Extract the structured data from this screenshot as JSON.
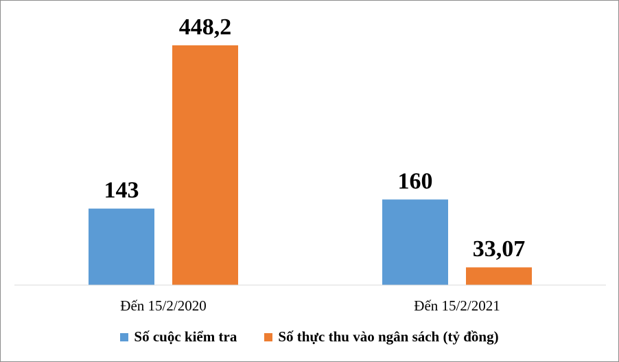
{
  "chart_data": {
    "type": "bar",
    "categories": [
      "Đến 15/2/2020",
      "Đến 15/2/2021"
    ],
    "series": [
      {
        "name": "Số cuộc kiểm tra",
        "values": [
          143,
          160
        ],
        "labels": [
          "143",
          "160"
        ],
        "color": "#5b9bd5"
      },
      {
        "name": "Số thực thu vào ngân sách (tỷ đồng)",
        "values": [
          448.2,
          33.07
        ],
        "labels": [
          "448,2",
          "33,07"
        ],
        "color": "#ed7d31"
      }
    ],
    "ylim": [
      0,
      448.2
    ],
    "grid": false,
    "legend": "bottom"
  }
}
